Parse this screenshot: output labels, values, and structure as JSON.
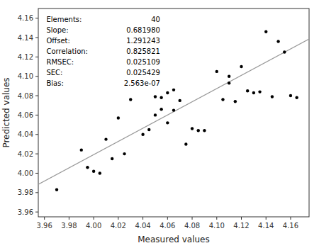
{
  "chart_data": {
    "type": "scatter",
    "xlabel": "Measured values",
    "ylabel": "Predicted values",
    "x": [
      3.97,
      3.99,
      3.995,
      4.0,
      4.005,
      4.01,
      4.015,
      4.02,
      4.025,
      4.03,
      4.04,
      4.045,
      4.05,
      4.05,
      4.055,
      4.055,
      4.06,
      4.06,
      4.065,
      4.065,
      4.07,
      4.075,
      4.08,
      4.085,
      4.09,
      4.1,
      4.105,
      4.11,
      4.11,
      4.115,
      4.12,
      4.125,
      4.13,
      4.135,
      4.14,
      4.145,
      4.15,
      4.155,
      4.16,
      4.165
    ],
    "values": [
      3.983,
      4.024,
      4.006,
      4.002,
      4.0,
      4.035,
      4.015,
      4.057,
      4.02,
      4.076,
      4.04,
      4.045,
      4.079,
      4.06,
      4.066,
      4.078,
      4.083,
      4.052,
      4.086,
      4.065,
      4.075,
      4.03,
      4.046,
      4.044,
      4.044,
      4.105,
      4.076,
      4.1,
      4.093,
      4.074,
      4.11,
      4.085,
      4.083,
      4.084,
      4.146,
      4.079,
      4.136,
      4.125,
      4.08,
      4.078
    ],
    "color": "#000000",
    "line": {
      "slope": 0.68198,
      "offset": 1.291243,
      "color": "#999999"
    },
    "xlim": [
      3.955,
      4.175
    ],
    "ylim": [
      3.955,
      4.17
    ],
    "xticks": [
      3.96,
      3.98,
      {
        "value": 4.0,
        "label": "4.00"
      },
      4.02,
      4.04,
      4.06,
      4.08,
      {
        "value": 4.1,
        "label": "4.10"
      },
      4.12,
      4.14,
      4.16
    ],
    "yticks": [
      3.96,
      3.98,
      {
        "value": 4.0,
        "label": "4.00"
      },
      4.02,
      4.04,
      4.06,
      4.08,
      {
        "value": 4.1,
        "label": "4.10"
      },
      4.12,
      4.14,
      4.16
    ],
    "annotations": [
      {
        "label": "Elements:",
        "text": "40"
      },
      {
        "label": "Slope:",
        "text": "0.681980"
      },
      {
        "label": "Offset:",
        "text": "1.291243"
      },
      {
        "label": "Correlation:",
        "text": "0.825821"
      },
      {
        "label": "RMSEC:",
        "text": "0.025109"
      },
      {
        "label": "SEC:",
        "text": "0.025429"
      },
      {
        "label": "Bias:",
        "text": "2.563e-07"
      }
    ],
    "grid": false
  }
}
